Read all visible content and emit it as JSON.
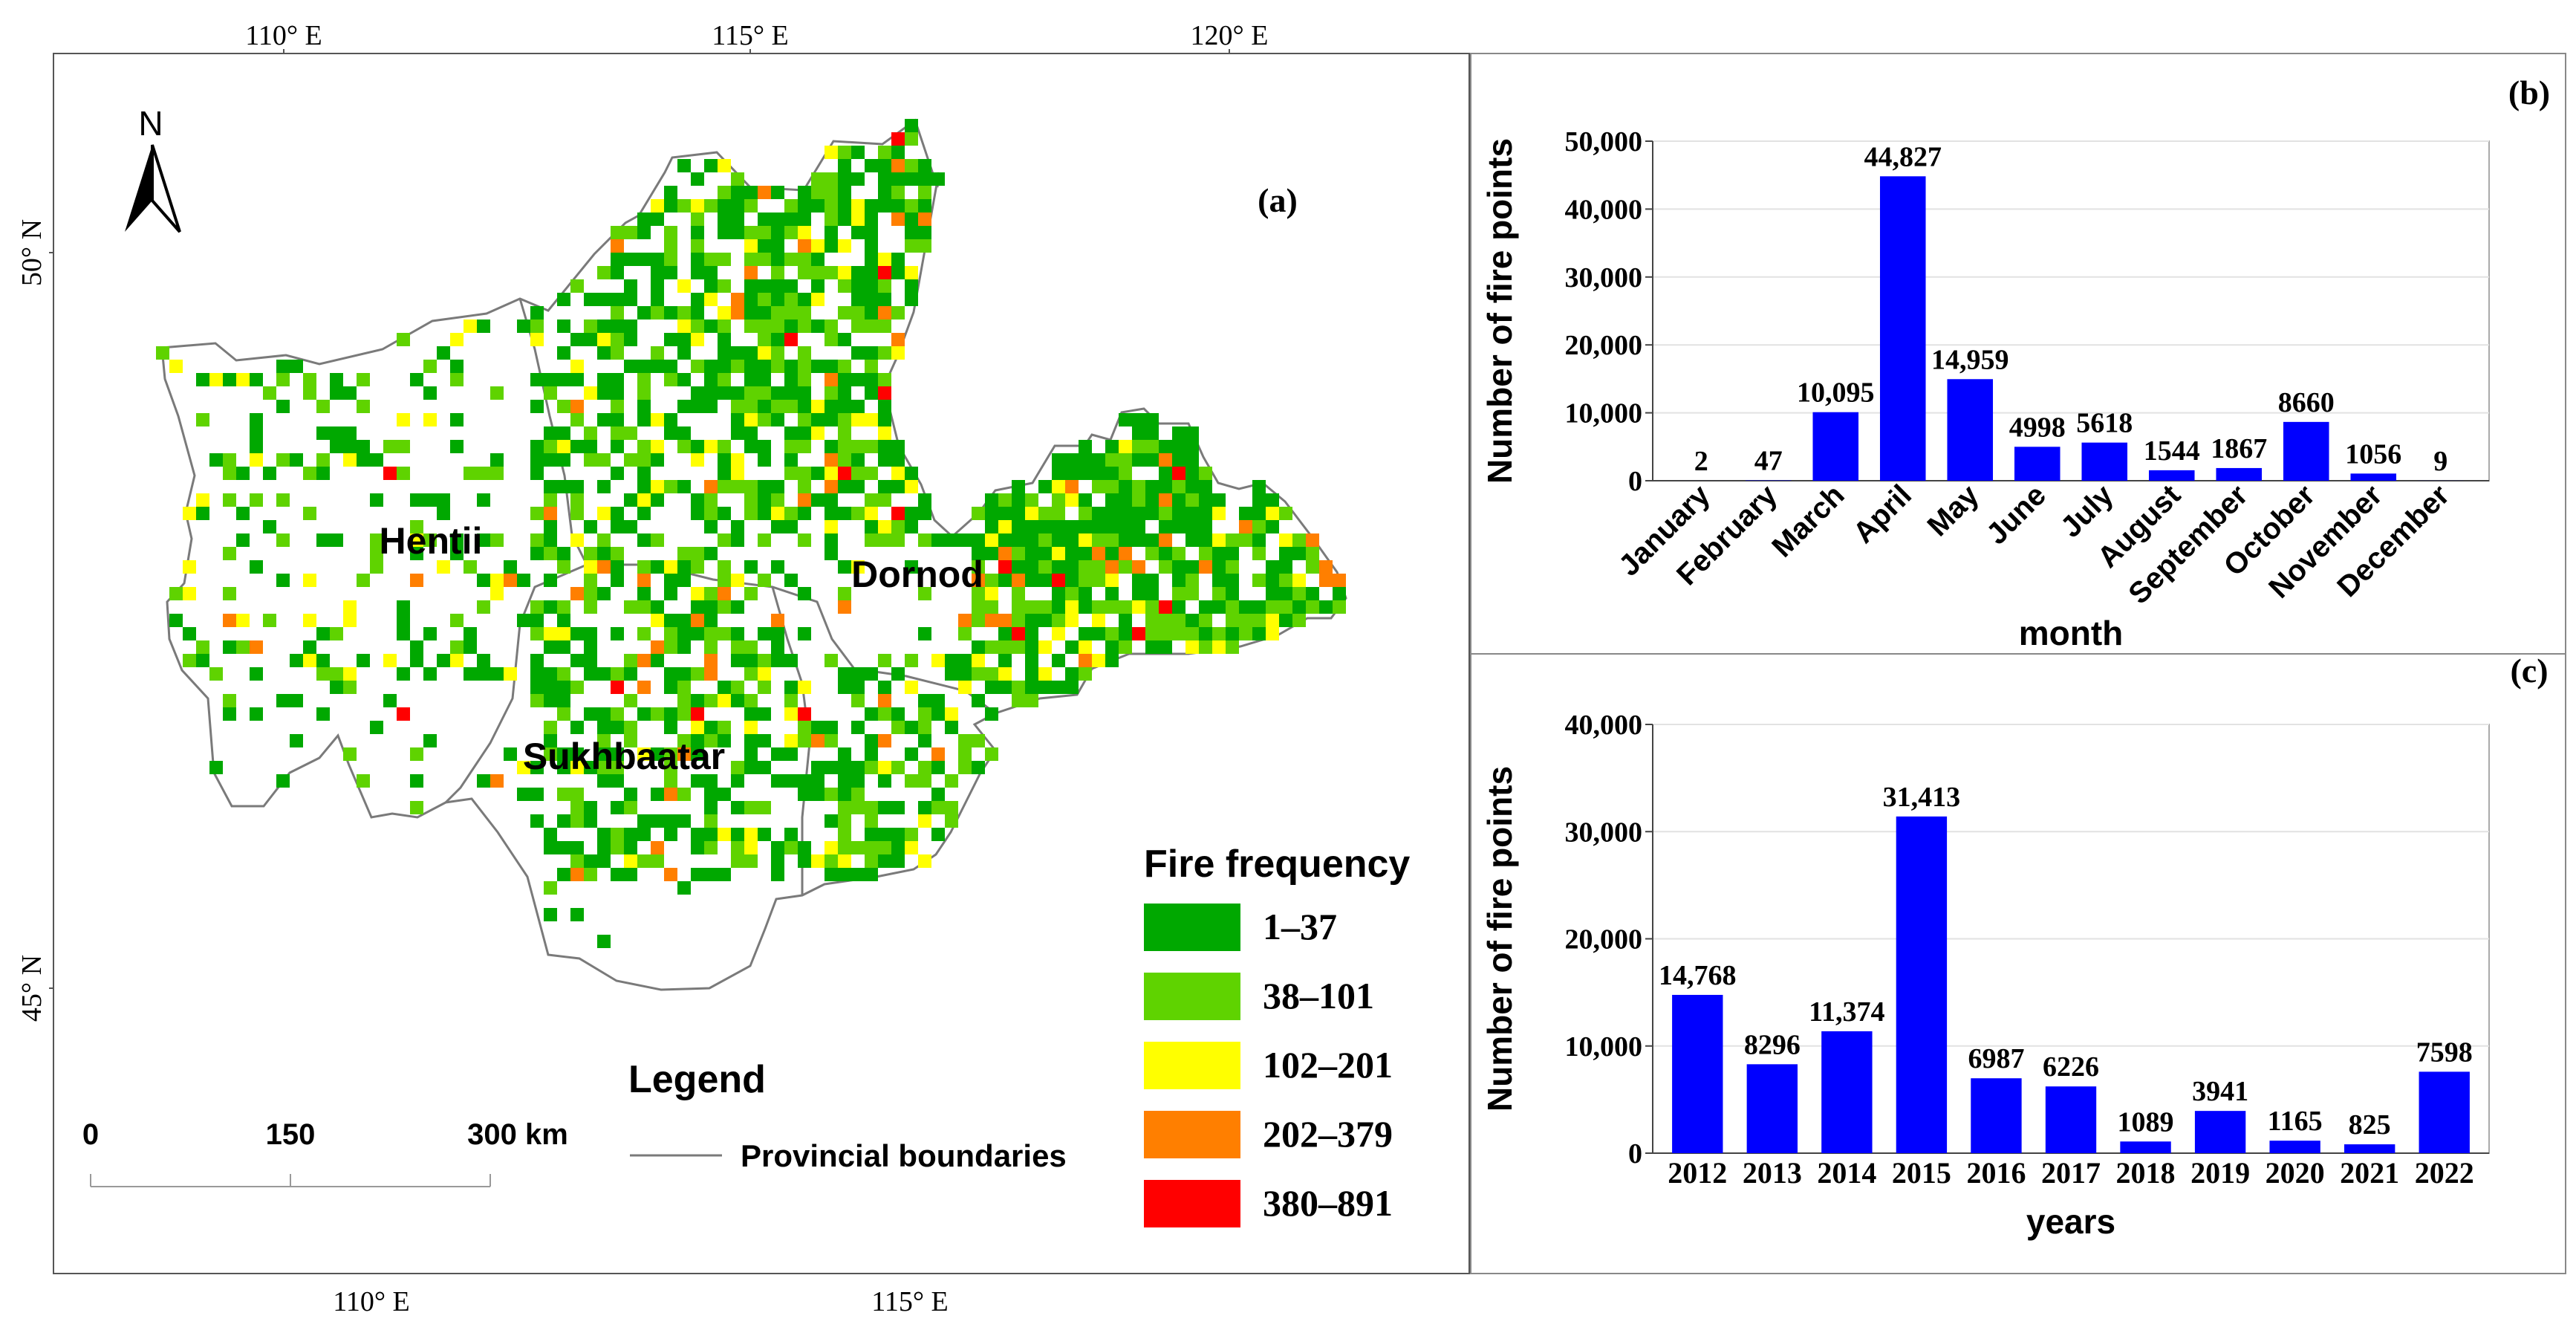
{
  "figure": {
    "panel_a_label": "(a)",
    "panel_b_label": "(b)",
    "panel_c_label": "(c)"
  },
  "map": {
    "top_ticks": [
      "110° E",
      "115° E",
      "120° E"
    ],
    "bottom_ticks": [
      "110° E",
      "115° E"
    ],
    "left_ticks": [
      "50° N",
      "45° N"
    ],
    "north_label": "N",
    "provinces": [
      "Hentii",
      "Dornod",
      "Sukhbaatar"
    ],
    "legend": {
      "title": "Legend",
      "boundary_label": "Provincial boundaries",
      "fire_title": "Fire frequency",
      "classes": [
        {
          "label": "1–37",
          "color": "#00a800"
        },
        {
          "label": "38–101",
          "color": "#5fd300"
        },
        {
          "label": "102–201",
          "color": "#ffff00"
        },
        {
          "label": "202–379",
          "color": "#ff7f00"
        },
        {
          "label": "380–891",
          "color": "#ff0000"
        }
      ]
    },
    "scale_bar": {
      "labels": [
        "0",
        "150",
        "300 km"
      ]
    }
  },
  "chart_data": [
    {
      "type": "bar",
      "panel": "(b)",
      "categories": [
        "January",
        "February",
        "March",
        "April",
        "May",
        "June",
        "July",
        "August",
        "September",
        "October",
        "November",
        "December"
      ],
      "values": [
        2,
        47,
        10095,
        44827,
        14959,
        4998,
        5618,
        1544,
        1867,
        8660,
        1056,
        9
      ],
      "value_labels": [
        "2",
        "47",
        "10,095",
        "44,827",
        "14,959",
        "4998",
        "5618",
        "1544",
        "1867",
        "8660",
        "1056",
        "9"
      ],
      "xlabel": "month",
      "ylabel": "Number of fire points",
      "ylim": [
        0,
        50000
      ],
      "yticks": [
        0,
        10000,
        20000,
        30000,
        40000,
        50000
      ],
      "ytick_labels": [
        "0",
        "10,000",
        "20,000",
        "30,000",
        "40,000",
        "50,000"
      ],
      "bar_color": "#0000ff",
      "grid": true
    },
    {
      "type": "bar",
      "panel": "(c)",
      "categories": [
        "2012",
        "2013",
        "2014",
        "2015",
        "2016",
        "2017",
        "2018",
        "2019",
        "2020",
        "2021",
        "2022"
      ],
      "values": [
        14768,
        8296,
        11374,
        31413,
        6987,
        6226,
        1089,
        3941,
        1165,
        825,
        7598
      ],
      "value_labels": [
        "14,768",
        "8296",
        "11,374",
        "31,413",
        "6987",
        "6226",
        "1089",
        "3941",
        "1165",
        "825",
        "7598"
      ],
      "xlabel": "years",
      "ylabel": "Number of fire points",
      "ylim": [
        0,
        40000
      ],
      "yticks": [
        0,
        10000,
        20000,
        30000,
        40000
      ],
      "ytick_labels": [
        "0",
        "10,000",
        "20,000",
        "30,000",
        "40,000"
      ],
      "bar_color": "#0000ff",
      "grid": true
    }
  ]
}
